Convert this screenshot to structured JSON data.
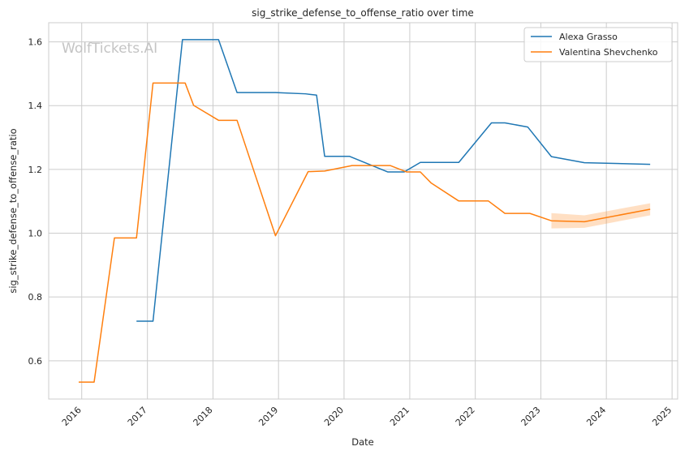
{
  "chart_data": {
    "type": "line",
    "title": "sig_strike_defense_to_offense_ratio over time",
    "xlabel": "Date",
    "ylabel": "sig_strike_defense_to_offense_ratio",
    "watermark": "WolfTickets.AI",
    "xlim": [
      "2015-07-01",
      "2025-02-01"
    ],
    "ylim": [
      0.48,
      1.66
    ],
    "x_ticks": [
      "2016",
      "2017",
      "2018",
      "2019",
      "2020",
      "2021",
      "2022",
      "2023",
      "2024",
      "2025"
    ],
    "y_ticks": [
      "0.6",
      "0.8",
      "1.0",
      "1.2",
      "1.4",
      "1.6"
    ],
    "y_tick_values": [
      0.6,
      0.8,
      1.0,
      1.2,
      1.4,
      1.6
    ],
    "grid": true,
    "legend_position": "top-right",
    "series": [
      {
        "name": "Alexa Grasso",
        "color": "#1f77b4",
        "points": [
          [
            "2016-11-01",
            0.724
          ],
          [
            "2017-02-01",
            0.724
          ],
          [
            "2017-07-15",
            1.607
          ],
          [
            "2018-02-01",
            1.607
          ],
          [
            "2018-05-15",
            1.441
          ],
          [
            "2018-12-15",
            1.441
          ],
          [
            "2019-06-01",
            1.437
          ],
          [
            "2019-08-01",
            1.433
          ],
          [
            "2019-09-15",
            1.241
          ],
          [
            "2020-02-01",
            1.241
          ],
          [
            "2020-09-01",
            1.192
          ],
          [
            "2020-12-01",
            1.192
          ],
          [
            "2021-03-01",
            1.222
          ],
          [
            "2021-10-01",
            1.222
          ],
          [
            "2022-04-01",
            1.346
          ],
          [
            "2022-06-15",
            1.346
          ],
          [
            "2022-10-20",
            1.333
          ],
          [
            "2023-03-01",
            1.24
          ],
          [
            "2023-09-01",
            1.221
          ],
          [
            "2024-09-01",
            1.216
          ]
        ]
      },
      {
        "name": "Valentina Shevchenko",
        "color": "#ff7f0e",
        "points": [
          [
            "2015-12-15",
            0.533
          ],
          [
            "2016-03-10",
            0.533
          ],
          [
            "2016-07-01",
            0.985
          ],
          [
            "2016-11-01",
            0.985
          ],
          [
            "2017-02-01",
            1.471
          ],
          [
            "2017-07-30",
            1.471
          ],
          [
            "2017-09-15",
            1.401
          ],
          [
            "2018-02-01",
            1.354
          ],
          [
            "2018-05-15",
            1.354
          ],
          [
            "2018-12-15",
            0.992
          ],
          [
            "2019-06-15",
            1.193
          ],
          [
            "2019-09-15",
            1.195
          ],
          [
            "2020-02-15",
            1.212
          ],
          [
            "2020-09-15",
            1.212
          ],
          [
            "2020-12-15",
            1.192
          ],
          [
            "2021-03-01",
            1.192
          ],
          [
            "2021-05-01",
            1.157
          ],
          [
            "2021-10-01",
            1.101
          ],
          [
            "2022-03-15",
            1.101
          ],
          [
            "2022-06-15",
            1.062
          ],
          [
            "2022-11-01",
            1.062
          ],
          [
            "2023-03-01",
            1.039
          ],
          [
            "2023-09-01",
            1.036
          ],
          [
            "2024-09-01",
            1.075
          ]
        ],
        "band": [
          [
            "2023-03-01",
            1.015,
            1.063
          ],
          [
            "2023-09-01",
            1.017,
            1.056
          ],
          [
            "2024-09-01",
            1.056,
            1.094
          ]
        ]
      }
    ]
  }
}
